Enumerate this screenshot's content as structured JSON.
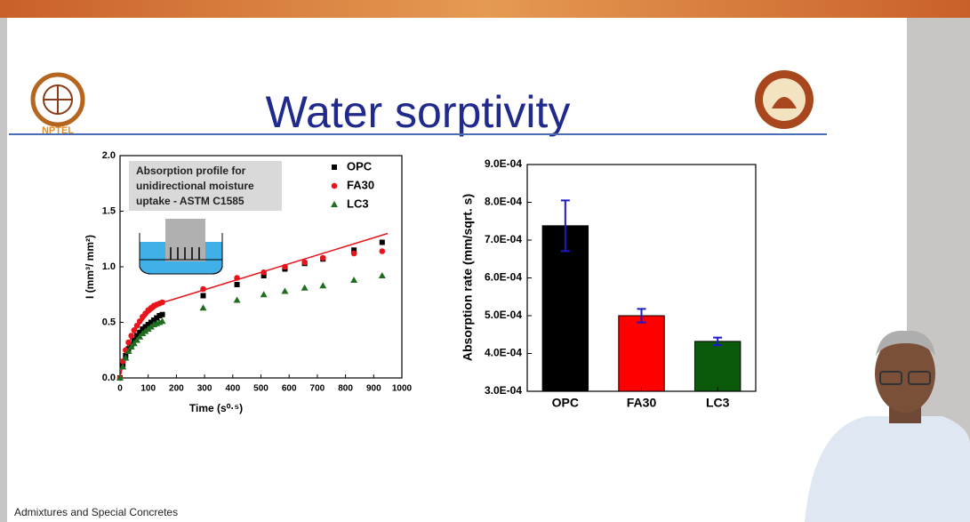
{
  "title": "Water sorptivity",
  "logo_text": "NPTEL",
  "footer": "Admixtures and Special Concretes",
  "chart_data": [
    {
      "type": "scatter",
      "x_label": "Time (s⁰·⁵)",
      "y_label": "I (mm³/ mm²)",
      "annotation": [
        "Absorption profile for",
        "unidirectional moisture",
        "uptake - ASTM C1585"
      ],
      "xlim": [
        0,
        1000
      ],
      "xticks": [
        0,
        100,
        200,
        300,
        400,
        500,
        600,
        700,
        800,
        900,
        1000
      ],
      "ylim": [
        0,
        2
      ],
      "yticks": [
        {
          "value": 0,
          "label": "0.0"
        },
        0.5,
        {
          "value": 1,
          "label": "1.0"
        },
        1.5,
        {
          "value": 2,
          "label": "2.0"
        }
      ],
      "legend": "top-right",
      "x": [
        0,
        10,
        20,
        30,
        40,
        50,
        60,
        70,
        80,
        90,
        100,
        110,
        120,
        130,
        140,
        150,
        295,
        415,
        510,
        585,
        655,
        720,
        830,
        930
      ],
      "series": [
        {
          "name": "OPC",
          "color": "#000000",
          "marker": "square",
          "values": [
            0,
            0.12,
            0.2,
            0.26,
            0.3,
            0.34,
            0.38,
            0.41,
            0.44,
            0.46,
            0.48,
            0.5,
            0.52,
            0.54,
            0.56,
            0.57,
            0.74,
            0.84,
            0.92,
            0.98,
            1.03,
            1.07,
            1.15,
            1.22
          ]
        },
        {
          "name": "FA30",
          "color": "#e8141c",
          "marker": "circle",
          "values": [
            0,
            0.15,
            0.25,
            0.32,
            0.38,
            0.43,
            0.47,
            0.51,
            0.55,
            0.58,
            0.61,
            0.63,
            0.65,
            0.66,
            0.67,
            0.68,
            0.8,
            0.9,
            0.95,
            1.0,
            1.04,
            1.08,
            1.12,
            1.14
          ]
        },
        {
          "name": "LC3",
          "color": "#1f6e1f",
          "marker": "triangle",
          "values": [
            0,
            0.1,
            0.18,
            0.24,
            0.28,
            0.31,
            0.34,
            0.37,
            0.4,
            0.42,
            0.44,
            0.46,
            0.48,
            0.49,
            0.5,
            0.51,
            0.63,
            0.7,
            0.75,
            0.78,
            0.81,
            0.83,
            0.88,
            0.92
          ]
        }
      ],
      "fit_line": {
        "color": "#e8141c",
        "x": [
          0,
          20,
          50,
          100,
          150,
          180,
          950
        ],
        "values": [
          0,
          0.25,
          0.42,
          0.58,
          0.68,
          0.7,
          1.3
        ]
      }
    },
    {
      "type": "bar",
      "y_label": "Absorption rate (mm/sqrt. s)",
      "categories": [
        "OPC",
        "FA30",
        "LC3"
      ],
      "values": [
        0.000738,
        0.0005,
        0.000432
      ],
      "errors": [
        6.7e-05,
        1.8e-05,
        1e-05
      ],
      "colors": [
        "#000000",
        "#ff0000",
        "#0b5a0b"
      ],
      "error_color": "#1a1acc",
      "ylim": [
        0.0003,
        0.0009
      ],
      "yticks": [
        {
          "value": 0.0003,
          "label": "3.0E-04"
        },
        {
          "value": 0.0004,
          "label": "4.0E-04"
        },
        {
          "value": 0.0005,
          "label": "5.0E-04"
        },
        {
          "value": 0.0006,
          "label": "6.0E-04"
        },
        {
          "value": 0.0007,
          "label": "7.0E-04"
        },
        {
          "value": 0.0008,
          "label": "8.0E-04"
        },
        {
          "value": 0.0009,
          "label": "9.0E-04"
        }
      ]
    }
  ]
}
